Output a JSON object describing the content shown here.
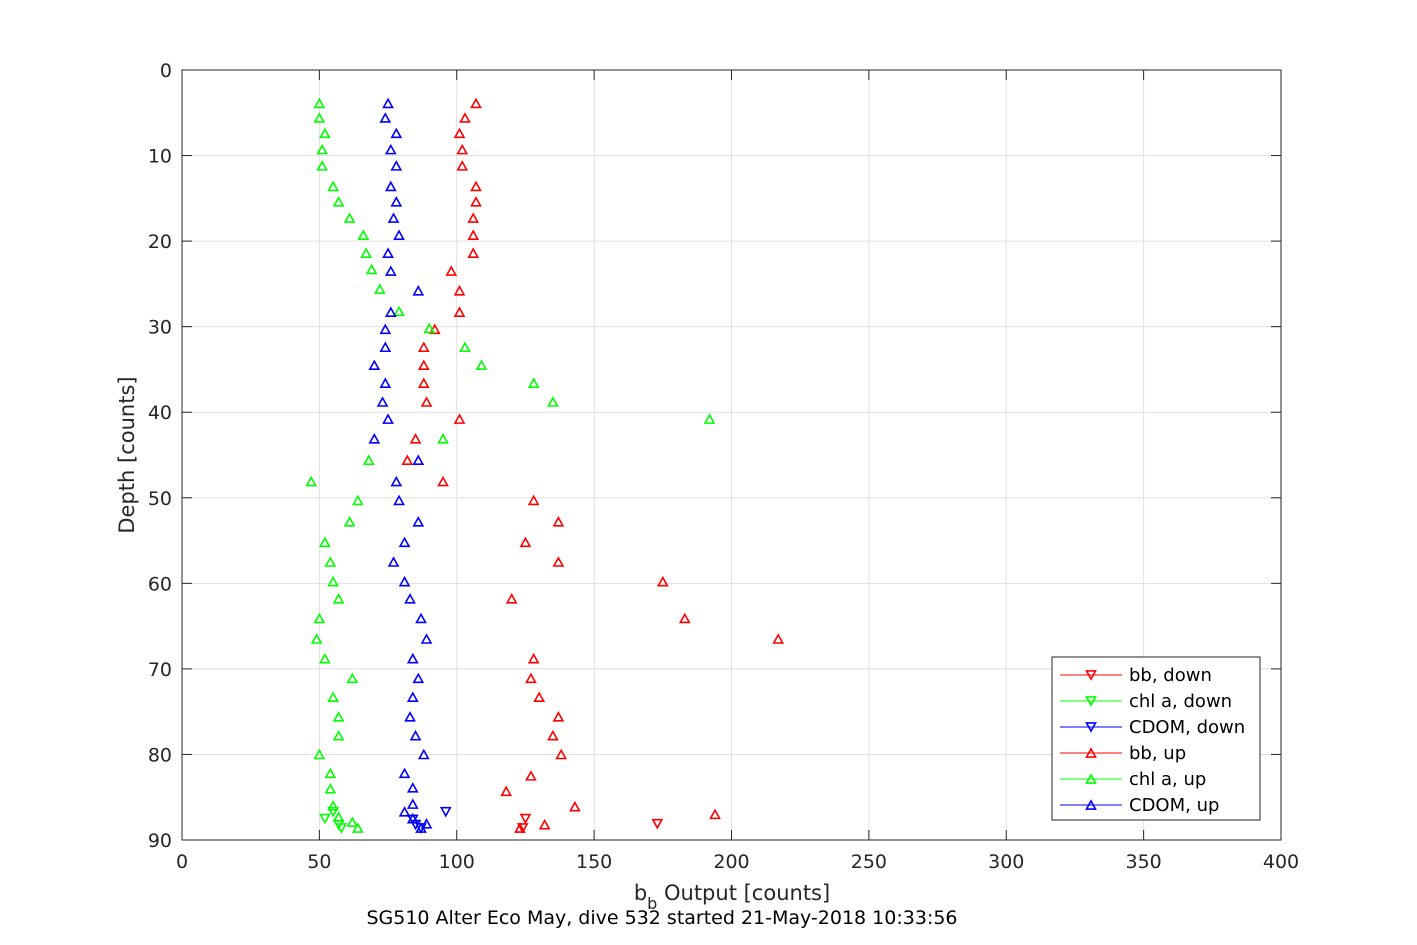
{
  "chart_data": {
    "type": "scatter",
    "title": "",
    "caption": "SG510 Alter Eco May, dive 532 started 21-May-2018 10:33:56",
    "xlabel_main": "b",
    "xlabel_sub": "b",
    "xlabel_rest": " Output [counts]",
    "ylabel": "Depth [counts]",
    "xlim": [
      0,
      400
    ],
    "ylim": [
      0,
      90
    ],
    "y_reversed": true,
    "grid": true,
    "legend_position": "bottom-right",
    "xticks": [
      "0",
      "50",
      "100",
      "150",
      "200",
      "250",
      "300",
      "350",
      "400"
    ],
    "yticks": [
      "0",
      "10",
      "20",
      "30",
      "40",
      "50",
      "60",
      "70",
      "80",
      "90"
    ],
    "series": [
      {
        "name": "bb, down",
        "color": "#ff0000",
        "marker": "triangle-down",
        "points": [
          [
            125,
            87.5
          ],
          [
            173,
            88.1
          ],
          [
            124,
            88.6
          ]
        ]
      },
      {
        "name": "chl a, down",
        "color": "#00ff00",
        "marker": "triangle-down",
        "points": [
          [
            55,
            86.7
          ],
          [
            52,
            87.5
          ],
          [
            57,
            88.2
          ],
          [
            58,
            88.6
          ]
        ]
      },
      {
        "name": "CDOM, down",
        "color": "#0000ff",
        "marker": "triangle-down",
        "points": [
          [
            96,
            86.7
          ],
          [
            84,
            87.6
          ],
          [
            85,
            88.2
          ],
          [
            87,
            88.6
          ]
        ]
      },
      {
        "name": "bb, up",
        "color": "#ff0000",
        "marker": "triangle-up",
        "points": [
          [
            107,
            3.9
          ],
          [
            103,
            5.6
          ],
          [
            101,
            7.4
          ],
          [
            102,
            9.3
          ],
          [
            102,
            11.2
          ],
          [
            107,
            13.6
          ],
          [
            107,
            15.4
          ],
          [
            106,
            17.3
          ],
          [
            106,
            19.3
          ],
          [
            106,
            21.4
          ],
          [
            98,
            23.5
          ],
          [
            101,
            25.8
          ],
          [
            101,
            28.3
          ],
          [
            92,
            30.3
          ],
          [
            88,
            32.4
          ],
          [
            88,
            34.5
          ],
          [
            88,
            36.6
          ],
          [
            89,
            38.8
          ],
          [
            101,
            40.8
          ],
          [
            85,
            43.1
          ],
          [
            82,
            45.6
          ],
          [
            95,
            48.1
          ],
          [
            128,
            50.3
          ],
          [
            137,
            52.8
          ],
          [
            125,
            55.2
          ],
          [
            137,
            57.5
          ],
          [
            175,
            59.8
          ],
          [
            120,
            61.8
          ],
          [
            183,
            64.1
          ],
          [
            217,
            66.5
          ],
          [
            128,
            68.8
          ],
          [
            127,
            71.1
          ],
          [
            130,
            73.3
          ],
          [
            137,
            75.6
          ],
          [
            135,
            77.8
          ],
          [
            138,
            80.0
          ],
          [
            127,
            82.5
          ],
          [
            118,
            84.3
          ],
          [
            143,
            86.1
          ],
          [
            194,
            87.0
          ],
          [
            132,
            88.2
          ],
          [
            123,
            88.6
          ]
        ]
      },
      {
        "name": "chl a, up",
        "color": "#00ff00",
        "marker": "triangle-up",
        "points": [
          [
            50,
            3.9
          ],
          [
            50,
            5.6
          ],
          [
            52,
            7.4
          ],
          [
            51,
            9.3
          ],
          [
            51,
            11.2
          ],
          [
            55,
            13.6
          ],
          [
            57,
            15.4
          ],
          [
            61,
            17.3
          ],
          [
            66,
            19.3
          ],
          [
            67,
            21.4
          ],
          [
            69,
            23.3
          ],
          [
            72,
            25.6
          ],
          [
            79,
            28.2
          ],
          [
            90,
            30.2
          ],
          [
            103,
            32.4
          ],
          [
            109,
            34.5
          ],
          [
            128,
            36.6
          ],
          [
            135,
            38.8
          ],
          [
            192,
            40.8
          ],
          [
            95,
            43.1
          ],
          [
            68,
            45.6
          ],
          [
            47,
            48.1
          ],
          [
            64,
            50.3
          ],
          [
            61,
            52.8
          ],
          [
            52,
            55.2
          ],
          [
            54,
            57.5
          ],
          [
            55,
            59.8
          ],
          [
            57,
            61.8
          ],
          [
            50,
            64.1
          ],
          [
            49,
            66.5
          ],
          [
            52,
            68.8
          ],
          [
            62,
            71.1
          ],
          [
            55,
            73.3
          ],
          [
            57,
            75.6
          ],
          [
            57,
            77.8
          ],
          [
            50,
            80.0
          ],
          [
            54,
            82.2
          ],
          [
            54,
            84.0
          ],
          [
            55,
            86.0
          ],
          [
            57,
            87.3
          ],
          [
            62,
            87.9
          ],
          [
            64,
            88.6
          ]
        ]
      },
      {
        "name": "CDOM, up",
        "color": "#0000ff",
        "marker": "triangle-up",
        "points": [
          [
            75,
            3.9
          ],
          [
            74,
            5.6
          ],
          [
            78,
            7.4
          ],
          [
            76,
            9.3
          ],
          [
            78,
            11.2
          ],
          [
            76,
            13.6
          ],
          [
            78,
            15.4
          ],
          [
            77,
            17.3
          ],
          [
            79,
            19.3
          ],
          [
            75,
            21.4
          ],
          [
            76,
            23.5
          ],
          [
            86,
            25.8
          ],
          [
            76,
            28.3
          ],
          [
            74,
            30.3
          ],
          [
            74,
            32.4
          ],
          [
            70,
            34.5
          ],
          [
            74,
            36.6
          ],
          [
            73,
            38.8
          ],
          [
            75,
            40.8
          ],
          [
            70,
            43.1
          ],
          [
            86,
            45.6
          ],
          [
            78,
            48.1
          ],
          [
            79,
            50.3
          ],
          [
            86,
            52.8
          ],
          [
            81,
            55.2
          ],
          [
            77,
            57.5
          ],
          [
            81,
            59.8
          ],
          [
            83,
            61.8
          ],
          [
            87,
            64.1
          ],
          [
            89,
            66.5
          ],
          [
            84,
            68.8
          ],
          [
            86,
            71.1
          ],
          [
            84,
            73.3
          ],
          [
            83,
            75.6
          ],
          [
            85,
            77.8
          ],
          [
            88,
            80.0
          ],
          [
            81,
            82.2
          ],
          [
            84,
            83.9
          ],
          [
            84,
            85.8
          ],
          [
            81,
            86.7
          ],
          [
            84,
            87.5
          ],
          [
            89,
            88.1
          ],
          [
            87,
            88.6
          ]
        ]
      }
    ]
  }
}
